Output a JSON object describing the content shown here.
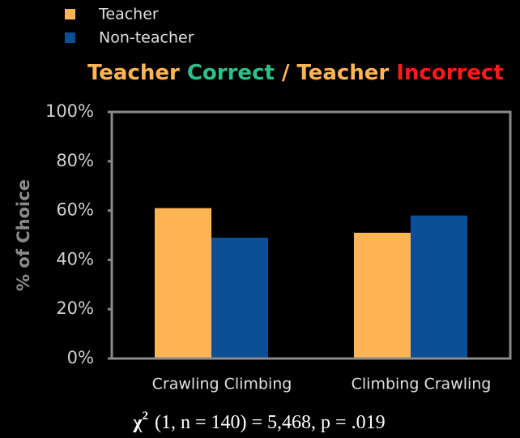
{
  "chart_data": {
    "type": "bar",
    "title": [
      {
        "text": "Teacher",
        "color": "#ffb554"
      },
      {
        "text": "Correct",
        "color": "#2ec08a"
      },
      {
        "text": "/",
        "color": "#ffb554"
      },
      {
        "text": "Teacher",
        "color": "#ffb554"
      },
      {
        "text": "Incorrect",
        "color": "#ff1a1a"
      }
    ],
    "y_label": "% of Choice",
    "categories": [
      "Crawling Climbing",
      "Climbing Crawling"
    ],
    "series": [
      {
        "name": "Teacher",
        "color": "#ffb554",
        "values": [
          61,
          51
        ]
      },
      {
        "name": "Non-teacher",
        "color": "#0b4f96",
        "values": [
          49,
          58
        ]
      }
    ],
    "ylim": [
      0,
      100
    ],
    "yticks": [
      {
        "value": 0,
        "label": "0%"
      },
      {
        "value": 20,
        "label": "20%"
      },
      {
        "value": 40,
        "label": "40%"
      },
      {
        "value": 60,
        "label": "60%"
      },
      {
        "value": 80,
        "label": "80%"
      },
      {
        "value": 100,
        "label": "100%"
      }
    ],
    "legend": "top-left",
    "annotation": {
      "symbol": "χ",
      "superscript": "2",
      "text": "(1, n = 140) = 5,468, p = .019"
    }
  }
}
